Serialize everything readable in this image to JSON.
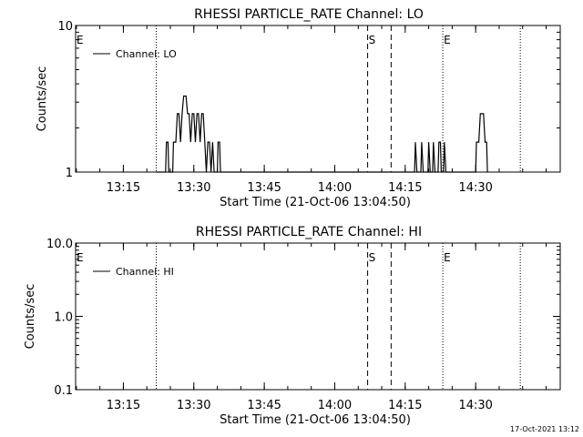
{
  "footer_timestamp": "17-Oct-2021 13:12",
  "chart_data": [
    {
      "type": "line",
      "title": "RHESSI PARTICLE_RATE Channel: LO",
      "xlabel": "Start Time (21-Oct-06 13:04:50)",
      "ylabel": "Counts/sec",
      "y_scale": "log",
      "ylim": [
        1,
        10
      ],
      "y_ticks": [
        {
          "value": 1,
          "label": "1"
        },
        {
          "value": 10,
          "label": "10"
        }
      ],
      "xlim": [
        "13:04:50",
        "14:48:00"
      ],
      "x_ticks": [
        {
          "value": "13:15",
          "label": "13:15"
        },
        {
          "value": "13:30",
          "label": "13:30"
        },
        {
          "value": "13:45",
          "label": "13:45"
        },
        {
          "value": "14:00",
          "label": "14:00"
        },
        {
          "value": "14:15",
          "label": "14:15"
        },
        {
          "value": "14:30",
          "label": "14:30"
        }
      ],
      "legend": {
        "label": "Channel: LO",
        "position": "top-left"
      },
      "markers": [
        {
          "time": "13:04:50",
          "label": "E",
          "style": "none"
        },
        {
          "time": "13:22:00",
          "label": "",
          "style": "dotted"
        },
        {
          "time": "14:07:00",
          "label": "S",
          "style": "dashed"
        },
        {
          "time": "14:12:00",
          "label": "",
          "style": "dashed"
        },
        {
          "time": "14:23:00",
          "label": "E",
          "style": "dotted"
        },
        {
          "time": "14:39:30",
          "label": "",
          "style": "dotted"
        }
      ],
      "series": [
        {
          "name": "Channel: LO",
          "points": [
            [
              "13:22:00",
              1
            ],
            [
              "13:24:00",
              1
            ],
            [
              "13:24:10",
              1.6
            ],
            [
              "13:24:30",
              1.6
            ],
            [
              "13:24:40",
              1
            ],
            [
              "13:25:30",
              1
            ],
            [
              "13:25:40",
              1.6
            ],
            [
              "13:26:10",
              1.6
            ],
            [
              "13:26:30",
              2.5
            ],
            [
              "13:26:50",
              2.5
            ],
            [
              "13:27:10",
              1.6
            ],
            [
              "13:27:30",
              2.5
            ],
            [
              "13:27:50",
              3.3
            ],
            [
              "13:28:20",
              3.3
            ],
            [
              "13:28:40",
              2.5
            ],
            [
              "13:29:00",
              2.5
            ],
            [
              "13:29:20",
              1.6
            ],
            [
              "13:29:40",
              2.5
            ],
            [
              "13:30:00",
              2.5
            ],
            [
              "13:30:20",
              1.6
            ],
            [
              "13:30:40",
              2.5
            ],
            [
              "13:31:00",
              2.5
            ],
            [
              "13:31:20",
              1.6
            ],
            [
              "13:31:40",
              2.5
            ],
            [
              "13:32:00",
              2.5
            ],
            [
              "13:32:20",
              1.6
            ],
            [
              "13:32:40",
              1
            ],
            [
              "13:33:00",
              1.6
            ],
            [
              "13:33:20",
              1.6
            ],
            [
              "13:33:40",
              1
            ],
            [
              "13:34:00",
              1.6
            ],
            [
              "13:34:20",
              1
            ],
            [
              "13:35:00",
              1
            ],
            [
              "13:35:10",
              1.6
            ],
            [
              "13:35:30",
              1.6
            ],
            [
              "13:35:40",
              1
            ],
            [
              "14:17:00",
              1
            ],
            [
              "14:17:10",
              1.6
            ],
            [
              "14:17:30",
              1
            ],
            [
              "14:18:20",
              1
            ],
            [
              "14:18:30",
              1.6
            ],
            [
              "14:18:50",
              1
            ],
            [
              "14:19:50",
              1
            ],
            [
              "14:20:00",
              1.6
            ],
            [
              "14:20:20",
              1
            ],
            [
              "14:20:50",
              1
            ],
            [
              "14:21:00",
              1.6
            ],
            [
              "14:21:20",
              1
            ],
            [
              "14:22:00",
              1
            ],
            [
              "14:22:10",
              1.6
            ],
            [
              "14:22:30",
              1.6
            ],
            [
              "14:22:40",
              1
            ],
            [
              "14:23:10",
              1
            ],
            [
              "14:23:20",
              1.6
            ],
            [
              "14:23:40",
              1
            ],
            [
              "14:30:00",
              1
            ],
            [
              "14:30:10",
              1.6
            ],
            [
              "14:30:40",
              1.6
            ],
            [
              "14:31:00",
              2.5
            ],
            [
              "14:31:40",
              2.5
            ],
            [
              "14:32:00",
              1.6
            ],
            [
              "14:32:20",
              1.6
            ],
            [
              "14:32:30",
              1
            ]
          ]
        }
      ]
    },
    {
      "type": "line",
      "title": "RHESSI PARTICLE_RATE Channel: HI",
      "xlabel": "Start Time (21-Oct-06 13:04:50)",
      "ylabel": "Counts/sec",
      "y_scale": "log",
      "ylim": [
        0.1,
        10
      ],
      "y_ticks": [
        {
          "value": 0.1,
          "label": "0.1"
        },
        {
          "value": 1,
          "label": "1.0"
        },
        {
          "value": 10,
          "label": "10.0"
        }
      ],
      "xlim": [
        "13:04:50",
        "14:48:00"
      ],
      "x_ticks": [
        {
          "value": "13:15",
          "label": "13:15"
        },
        {
          "value": "13:30",
          "label": "13:30"
        },
        {
          "value": "13:45",
          "label": "13:45"
        },
        {
          "value": "14:00",
          "label": "14:00"
        },
        {
          "value": "14:15",
          "label": "14:15"
        },
        {
          "value": "14:30",
          "label": "14:30"
        }
      ],
      "legend": {
        "label": "Channel: HI",
        "position": "top-left"
      },
      "markers": [
        {
          "time": "13:04:50",
          "label": "E",
          "style": "none"
        },
        {
          "time": "13:22:00",
          "label": "",
          "style": "dotted"
        },
        {
          "time": "14:07:00",
          "label": "S",
          "style": "dashed"
        },
        {
          "time": "14:12:00",
          "label": "",
          "style": "dashed"
        },
        {
          "time": "14:23:00",
          "label": "E",
          "style": "dotted"
        },
        {
          "time": "14:39:30",
          "label": "",
          "style": "dotted"
        }
      ],
      "series": [
        {
          "name": "Channel: HI",
          "points": []
        }
      ]
    }
  ]
}
